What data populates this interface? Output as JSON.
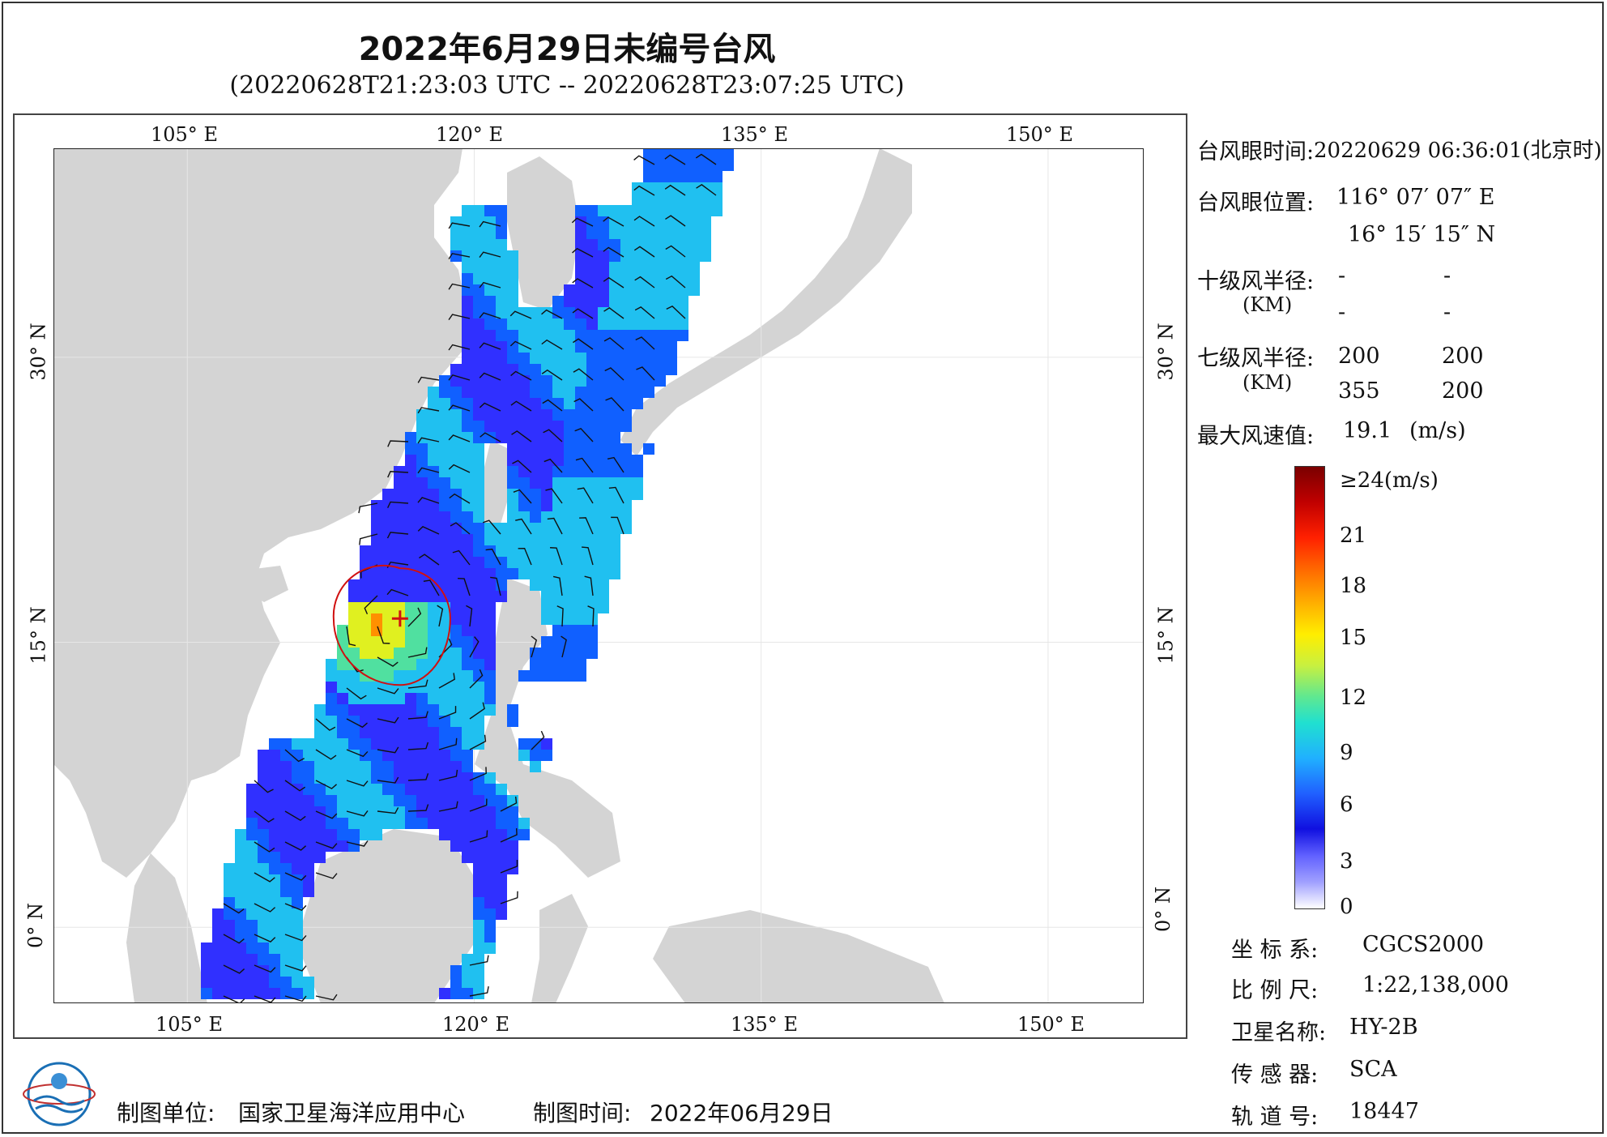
{
  "title": "2022年6月29日未编号台风",
  "subtitle": "(20220628T21:23:03 UTC -- 20220628T23:07:25 UTC)",
  "axes": {
    "lon_labels": [
      "105° E",
      "120° E",
      "135° E",
      "150° E"
    ],
    "lat_labels": [
      "30° N",
      "15° N",
      "0° N"
    ],
    "lon_range": [
      98,
      155
    ],
    "lat_range": [
      -4,
      41
    ]
  },
  "info": {
    "eye_time_label": "台风眼时间:",
    "eye_time_value": "20220629 06:36:01(北京时)",
    "eye_pos_label": "台风眼位置:",
    "eye_lon": "116° 07′ 07″ E",
    "eye_lat": "16° 15′ 15″ N",
    "r10_label": "十级风半径:",
    "km_label": "(KM)",
    "r10_values": [
      "-",
      "-",
      "-",
      "-"
    ],
    "r7_label": "七级风半径:",
    "r7_values": [
      "200",
      "200",
      "355",
      "200"
    ],
    "max_wind_label": "最大风速值:",
    "max_wind_value": "19.1",
    "max_wind_unit": "(m/s)"
  },
  "legend": {
    "top_label": "≥24(m/s)",
    "ticks": [
      "21",
      "18",
      "15",
      "12",
      "9",
      "6",
      "3",
      "0"
    ]
  },
  "meta": {
    "crs_label": "坐 标 系:",
    "crs_value": "CGCS2000",
    "scale_label": "比 例 尺:",
    "scale_value": "1:22,138,000",
    "sat_label": "卫星名称:",
    "sat_value": "HY-2B",
    "sensor_label": "传 感 器:",
    "sensor_value": "SCA",
    "orbit_label": "轨 道 号:",
    "orbit_value": "18447"
  },
  "footer": {
    "maker_label": "制图单位:",
    "maker_value": "国家卫星海洋应用中心",
    "date_label": "制图时间:",
    "date_value": "2022年06月29日"
  },
  "typhoon": {
    "eye_lon": 116.12,
    "eye_lat": 16.25
  },
  "colors": {
    "land": "#d4d4d4",
    "ocean": "#ffffff",
    "eye_marker": "#d01010"
  }
}
